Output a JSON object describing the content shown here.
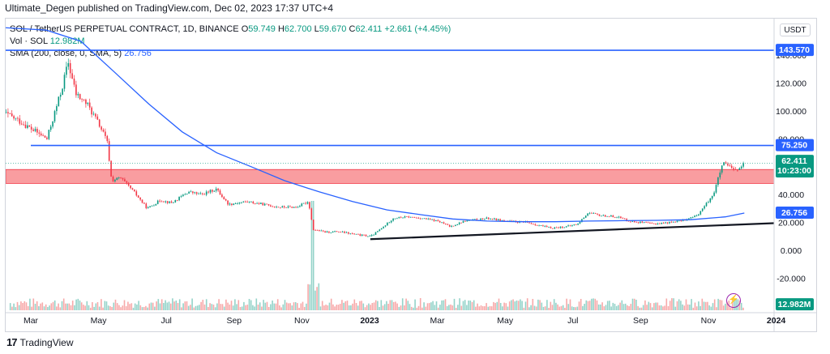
{
  "header": {
    "credit": "Ultimate_Degen published on TradingView.com, Dec 02, 2023 17:37 UTC+4"
  },
  "legend": {
    "symbol_line": "SOL / TetherUS PERPETUAL CONTRACT, 1D, BINANCE",
    "o_label": "O",
    "o_value": "59.749",
    "h_label": "H",
    "h_value": "62.700",
    "l_label": "L",
    "l_value": "59.670",
    "c_label": "C",
    "c_value": "62.411",
    "change": "+2.661 (+4.45%)",
    "vol_label": "Vol · SOL",
    "vol_value": "12.982M",
    "sma_label": "SMA (200, close, 0, SMA, 5)",
    "sma_value": "26.756"
  },
  "currency": "USDT",
  "branding": {
    "logo_text": "TradingView",
    "logo_mark": "17"
  },
  "colors": {
    "up": "#089981",
    "down": "#f23645",
    "sma": "#2962ff",
    "hline": "#2962ff",
    "zone": "#f77c80",
    "trend": "#131722",
    "label_bg": "#2962ff",
    "price_bg": "#089981"
  },
  "chart_data": {
    "type": "candlestick",
    "x_ticks": [
      "Mar",
      "May",
      "Jul",
      "Sep",
      "Nov",
      "2023",
      "Mar",
      "May",
      "Jul",
      "Sep",
      "Nov",
      "2024"
    ],
    "y_ticks": [
      "140.000",
      "120.000",
      "100.000",
      "80.000",
      "60.000",
      "40.000",
      "20.000",
      "0.000",
      "-20.000"
    ],
    "ylim": [
      -30,
      160
    ],
    "price_series": [
      {
        "t": "2022-02-01",
        "v": 100
      },
      {
        "t": "2022-02-20",
        "v": 92
      },
      {
        "t": "2022-03-01",
        "v": 87
      },
      {
        "t": "2022-03-15",
        "v": 80
      },
      {
        "t": "2022-03-28",
        "v": 115
      },
      {
        "t": "2022-04-03",
        "v": 135
      },
      {
        "t": "2022-04-10",
        "v": 112
      },
      {
        "t": "2022-04-20",
        "v": 105
      },
      {
        "t": "2022-05-01",
        "v": 90
      },
      {
        "t": "2022-05-08",
        "v": 78
      },
      {
        "t": "2022-05-12",
        "v": 50
      },
      {
        "t": "2022-05-20",
        "v": 52
      },
      {
        "t": "2022-06-01",
        "v": 42
      },
      {
        "t": "2022-06-13",
        "v": 30
      },
      {
        "t": "2022-06-25",
        "v": 36
      },
      {
        "t": "2022-07-05",
        "v": 34
      },
      {
        "t": "2022-07-20",
        "v": 42
      },
      {
        "t": "2022-08-01",
        "v": 40
      },
      {
        "t": "2022-08-14",
        "v": 44
      },
      {
        "t": "2022-08-25",
        "v": 33
      },
      {
        "t": "2022-09-10",
        "v": 35
      },
      {
        "t": "2022-09-25",
        "v": 33
      },
      {
        "t": "2022-10-10",
        "v": 31
      },
      {
        "t": "2022-10-25",
        "v": 31
      },
      {
        "t": "2022-11-05",
        "v": 35
      },
      {
        "t": "2022-11-09",
        "v": 15
      },
      {
        "t": "2022-11-20",
        "v": 13
      },
      {
        "t": "2022-12-01",
        "v": 13.5
      },
      {
        "t": "2022-12-20",
        "v": 11
      },
      {
        "t": "2022-12-31",
        "v": 10
      },
      {
        "t": "2023-01-10",
        "v": 16
      },
      {
        "t": "2023-01-20",
        "v": 23
      },
      {
        "t": "2023-02-01",
        "v": 24
      },
      {
        "t": "2023-02-15",
        "v": 23
      },
      {
        "t": "2023-03-01",
        "v": 21
      },
      {
        "t": "2023-03-12",
        "v": 17
      },
      {
        "t": "2023-03-25",
        "v": 21
      },
      {
        "t": "2023-04-15",
        "v": 23
      },
      {
        "t": "2023-05-01",
        "v": 21
      },
      {
        "t": "2023-05-20",
        "v": 20
      },
      {
        "t": "2023-06-10",
        "v": 16
      },
      {
        "t": "2023-06-25",
        "v": 17
      },
      {
        "t": "2023-07-05",
        "v": 19
      },
      {
        "t": "2023-07-14",
        "v": 27
      },
      {
        "t": "2023-07-25",
        "v": 25
      },
      {
        "t": "2023-08-10",
        "v": 24
      },
      {
        "t": "2023-08-20",
        "v": 21
      },
      {
        "t": "2023-09-10",
        "v": 19
      },
      {
        "t": "2023-09-25",
        "v": 20
      },
      {
        "t": "2023-10-10",
        "v": 22
      },
      {
        "t": "2023-10-20",
        "v": 25
      },
      {
        "t": "2023-10-28",
        "v": 33
      },
      {
        "t": "2023-11-04",
        "v": 41
      },
      {
        "t": "2023-11-10",
        "v": 57
      },
      {
        "t": "2023-11-12",
        "v": 62
      },
      {
        "t": "2023-11-18",
        "v": 60
      },
      {
        "t": "2023-11-22",
        "v": 57
      },
      {
        "t": "2023-11-28",
        "v": 59
      },
      {
        "t": "2023-12-02",
        "v": 62.4
      }
    ],
    "sma_series": [
      {
        "t": "2022-02-01",
        "v": 160
      },
      {
        "t": "2022-03-15",
        "v": 158
      },
      {
        "t": "2022-04-15",
        "v": 150
      },
      {
        "t": "2022-05-15",
        "v": 128
      },
      {
        "t": "2022-06-15",
        "v": 105
      },
      {
        "t": "2022-07-15",
        "v": 85
      },
      {
        "t": "2022-08-15",
        "v": 70
      },
      {
        "t": "2022-09-15",
        "v": 60
      },
      {
        "t": "2022-10-15",
        "v": 50
      },
      {
        "t": "2022-11-15",
        "v": 42
      },
      {
        "t": "2022-12-15",
        "v": 35
      },
      {
        "t": "2023-01-15",
        "v": 29
      },
      {
        "t": "2023-02-15",
        "v": 25.5
      },
      {
        "t": "2023-03-15",
        "v": 22.5
      },
      {
        "t": "2023-04-15",
        "v": 21
      },
      {
        "t": "2023-05-15",
        "v": 20.5
      },
      {
        "t": "2023-06-15",
        "v": 20.5
      },
      {
        "t": "2023-07-15",
        "v": 21
      },
      {
        "t": "2023-08-15",
        "v": 21.3
      },
      {
        "t": "2023-09-15",
        "v": 21.5
      },
      {
        "t": "2023-10-15",
        "v": 22
      },
      {
        "t": "2023-11-15",
        "v": 24
      },
      {
        "t": "2023-12-02",
        "v": 26.756
      }
    ],
    "horizontal_levels": [
      {
        "value": 143.57,
        "label": "143.570",
        "from": "2022-02-01"
      },
      {
        "value": 75.25,
        "label": "75.250",
        "from": "2022-03-01"
      }
    ],
    "resistance_zone": {
      "low": 48,
      "high": 58,
      "from": "2022-02-01",
      "to": "2023-12-31"
    },
    "trendline": {
      "start": {
        "t": "2022-12-31",
        "v": 8
      },
      "end": {
        "t": "2024-02-15",
        "v": 21
      }
    },
    "current_price": {
      "label": "62.411",
      "countdown": "10:23:00",
      "value": 62.411
    },
    "sma_marker": {
      "label": "26.756",
      "value": 26.756
    },
    "volume_label": "12.982M",
    "volume_spike": {
      "t": "2022-11-09"
    }
  }
}
